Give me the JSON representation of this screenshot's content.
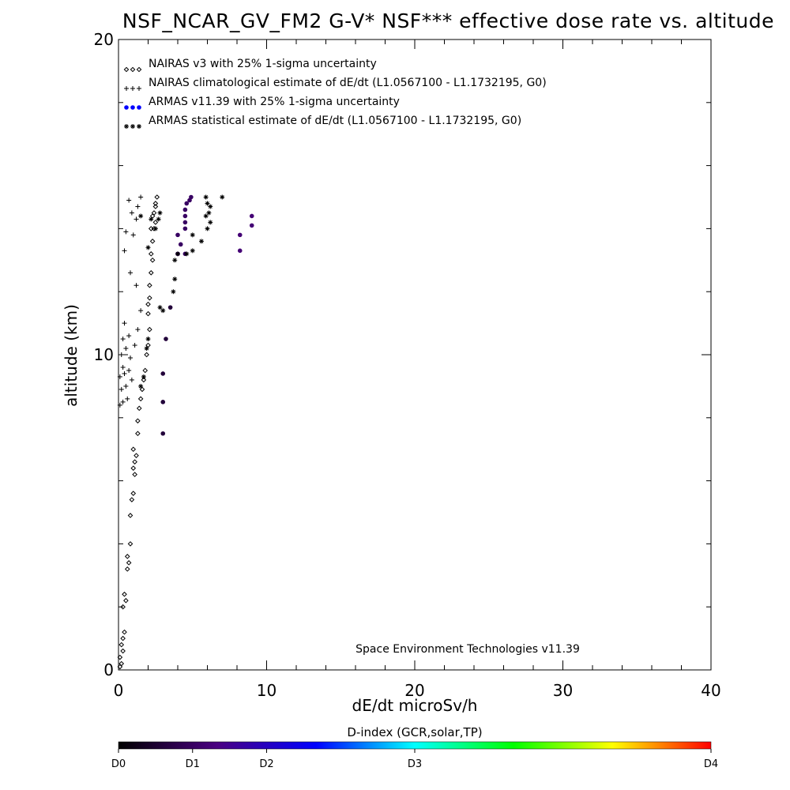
{
  "chart_data": {
    "type": "scatter",
    "title": "NSF_NCAR_GV_FM2 G-V* NSF*** effective dose rate vs. altitude",
    "xlabel": "dE/dt microSv/h",
    "ylabel": "altitude (km)",
    "xlim": [
      0,
      40
    ],
    "ylim": [
      0,
      20
    ],
    "x_ticks": [
      0,
      10,
      20,
      30,
      40
    ],
    "y_ticks": [
      0,
      10,
      20
    ],
    "grid": false,
    "legend_position": "top-left",
    "credit": "Space Environment Technologies v11.39",
    "colorbar": {
      "title": "D-index (GCR,solar,TP)",
      "labels": [
        "D0",
        "D1",
        "D2",
        "D3",
        "D4"
      ],
      "label_values": [
        0,
        0.5,
        1,
        2,
        4
      ],
      "colors": [
        "#000000",
        "#4b0082",
        "#0000ff",
        "#00ffff",
        "#00ff00",
        "#ffff00",
        "#ff0000"
      ]
    },
    "series": [
      {
        "name": "NAIRAS v3 with 25% 1-sigma uncertainty",
        "marker": "diamond",
        "color": "#000000",
        "points": [
          [
            0.1,
            0.1
          ],
          [
            0.2,
            0.2
          ],
          [
            0.1,
            0.4
          ],
          [
            0.3,
            0.6
          ],
          [
            0.2,
            0.8
          ],
          [
            0.3,
            1.0
          ],
          [
            0.4,
            1.2
          ],
          [
            0.3,
            2.0
          ],
          [
            0.5,
            2.2
          ],
          [
            0.4,
            2.4
          ],
          [
            0.6,
            3.2
          ],
          [
            0.7,
            3.4
          ],
          [
            0.6,
            3.6
          ],
          [
            0.8,
            4.0
          ],
          [
            0.8,
            4.9
          ],
          [
            0.9,
            5.4
          ],
          [
            1.0,
            5.6
          ],
          [
            1.1,
            6.2
          ],
          [
            1.0,
            6.4
          ],
          [
            1.1,
            6.6
          ],
          [
            1.2,
            6.8
          ],
          [
            1.0,
            7.0
          ],
          [
            1.3,
            7.5
          ],
          [
            1.3,
            7.9
          ],
          [
            1.4,
            8.3
          ],
          [
            1.5,
            8.6
          ],
          [
            1.6,
            8.9
          ],
          [
            1.7,
            9.2
          ],
          [
            1.8,
            9.5
          ],
          [
            1.9,
            10.0
          ],
          [
            2.0,
            10.3
          ],
          [
            2.1,
            10.8
          ],
          [
            2.0,
            11.3
          ],
          [
            2.0,
            11.6
          ],
          [
            2.1,
            11.8
          ],
          [
            2.1,
            12.2
          ],
          [
            2.2,
            12.6
          ],
          [
            2.3,
            13.0
          ],
          [
            2.2,
            13.2
          ],
          [
            2.3,
            13.6
          ],
          [
            2.4,
            14.0
          ],
          [
            2.5,
            14.2
          ],
          [
            2.4,
            14.5
          ],
          [
            2.5,
            14.8
          ],
          [
            2.6,
            15.0
          ],
          [
            2.5,
            14.7
          ],
          [
            2.3,
            14.4
          ],
          [
            2.2,
            14.0
          ]
        ]
      },
      {
        "name": "NAIRAS climatological estimate of dE/dt (L1.0567100 - L1.1732195, G0)",
        "marker": "plus",
        "color": "#000000",
        "points": [
          [
            0.1,
            8.4
          ],
          [
            0.3,
            8.5
          ],
          [
            0.6,
            8.6
          ],
          [
            0.2,
            8.9
          ],
          [
            0.5,
            9.0
          ],
          [
            0.9,
            9.2
          ],
          [
            0.1,
            9.3
          ],
          [
            0.4,
            9.4
          ],
          [
            0.7,
            9.5
          ],
          [
            0.3,
            9.6
          ],
          [
            0.8,
            9.9
          ],
          [
            0.2,
            10.0
          ],
          [
            0.5,
            10.2
          ],
          [
            1.1,
            10.3
          ],
          [
            0.3,
            10.5
          ],
          [
            0.7,
            10.6
          ],
          [
            1.3,
            10.8
          ],
          [
            0.4,
            11.0
          ],
          [
            1.5,
            11.4
          ],
          [
            1.2,
            12.2
          ],
          [
            0.8,
            12.6
          ],
          [
            0.4,
            13.3
          ],
          [
            1.0,
            13.8
          ],
          [
            0.5,
            13.9
          ],
          [
            1.2,
            14.3
          ],
          [
            0.9,
            14.5
          ],
          [
            1.3,
            14.7
          ],
          [
            0.7,
            14.9
          ],
          [
            1.5,
            15.0
          ]
        ]
      },
      {
        "name": "ARMAS v11.39 with 25% 1-sigma uncertainty",
        "marker": "dot",
        "color": "#0000ff",
        "points": [
          [
            3.0,
            7.5,
            0.3
          ],
          [
            3.0,
            8.5,
            0.3
          ],
          [
            3.0,
            9.4,
            0.3
          ],
          [
            3.2,
            10.5,
            0.3
          ],
          [
            3.5,
            11.5,
            0.3
          ],
          [
            4.0,
            13.2,
            0.5
          ],
          [
            4.5,
            13.2,
            0.5
          ],
          [
            4.2,
            13.5,
            0.5
          ],
          [
            4.0,
            13.8,
            0.5
          ],
          [
            8.2,
            13.3,
            0.6
          ],
          [
            8.2,
            13.8,
            0.6
          ],
          [
            4.5,
            14.0,
            0.5
          ],
          [
            4.5,
            14.2,
            0.5
          ],
          [
            4.5,
            14.4,
            0.5
          ],
          [
            4.5,
            14.6,
            0.5
          ],
          [
            4.6,
            14.8,
            0.5
          ],
          [
            4.8,
            14.9,
            0.5
          ],
          [
            9.0,
            14.1,
            0.6
          ],
          [
            9.0,
            14.4,
            0.6
          ],
          [
            4.9,
            15.0,
            0.5
          ]
        ]
      },
      {
        "name": "ARMAS statistical estimate of dE/dt (L1.0567100 - L1.1732195, G0)",
        "marker": "asterisk",
        "color": "#000000",
        "points": [
          [
            1.7,
            9.3
          ],
          [
            1.5,
            9.0
          ],
          [
            1.9,
            10.2
          ],
          [
            2.0,
            10.5
          ],
          [
            2.8,
            11.5
          ],
          [
            3.0,
            11.4
          ],
          [
            3.7,
            12.0
          ],
          [
            3.8,
            12.4
          ],
          [
            4.0,
            13.2
          ],
          [
            3.8,
            13.0
          ],
          [
            5.0,
            13.3
          ],
          [
            4.6,
            13.2
          ],
          [
            5.6,
            13.6
          ],
          [
            5.0,
            13.8
          ],
          [
            2.0,
            13.4
          ],
          [
            2.5,
            14.0
          ],
          [
            2.2,
            14.3
          ],
          [
            1.5,
            14.4
          ],
          [
            6.0,
            14.0
          ],
          [
            6.2,
            14.2
          ],
          [
            5.9,
            14.4
          ],
          [
            6.1,
            14.5
          ],
          [
            6.2,
            14.7
          ],
          [
            6.0,
            14.8
          ],
          [
            5.9,
            15.0
          ],
          [
            7.0,
            15.0
          ],
          [
            2.8,
            14.5
          ],
          [
            2.7,
            14.3
          ]
        ]
      }
    ]
  }
}
